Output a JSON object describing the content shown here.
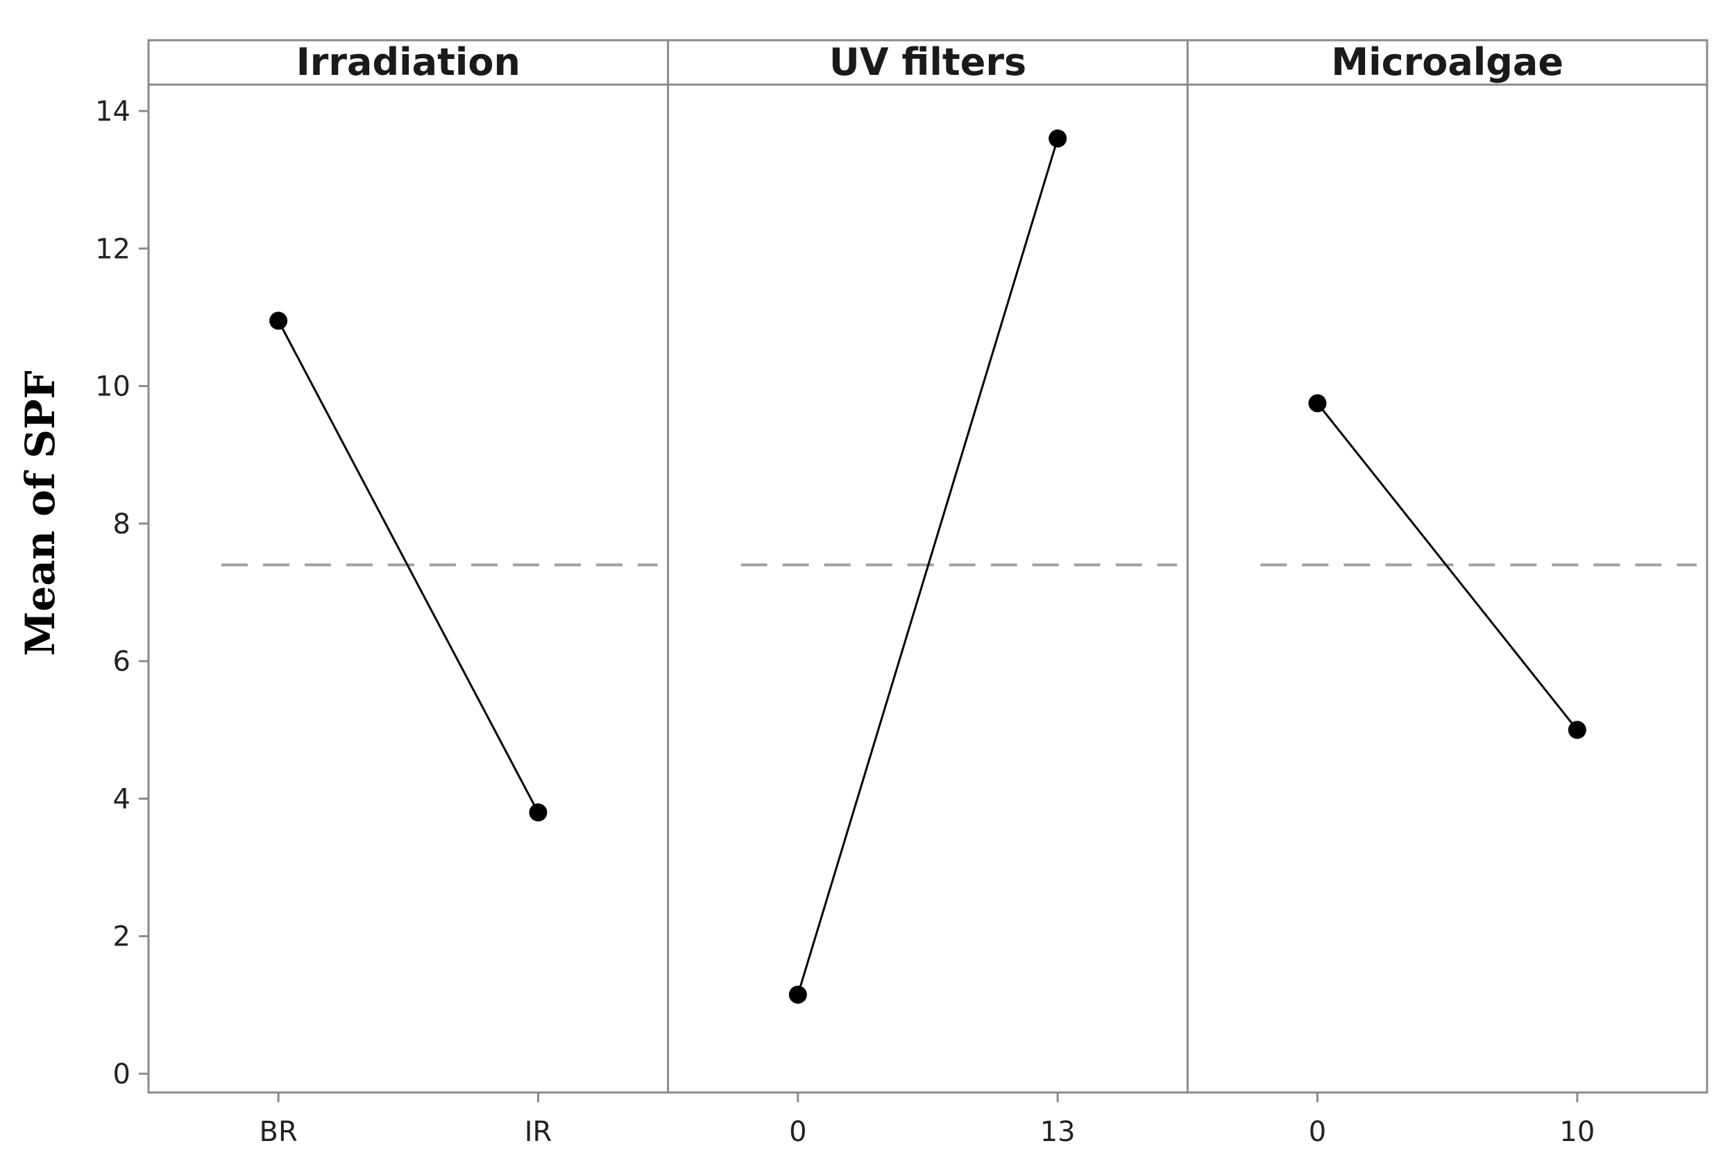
{
  "chart_data": {
    "type": "line",
    "title": "",
    "ylabel": "Mean of SPF",
    "ylim": [
      0,
      14
    ],
    "yticks": [
      0,
      2,
      4,
      6,
      8,
      10,
      12,
      14
    ],
    "reference_line": 7.4,
    "grid": false,
    "panels": [
      {
        "title": "Irradiation",
        "categories": [
          "BR",
          "IR"
        ],
        "values": [
          10.95,
          3.8
        ]
      },
      {
        "title": "UV filters",
        "categories": [
          "0",
          "13"
        ],
        "values": [
          1.15,
          13.6
        ]
      },
      {
        "title": "Microalgae",
        "categories": [
          "0",
          "10"
        ],
        "values": [
          9.75,
          5.0
        ]
      }
    ]
  },
  "colors": {
    "frame": "#8a8a8a",
    "line": "#000000",
    "marker": "#000000",
    "reference": "#a0a0a0"
  }
}
